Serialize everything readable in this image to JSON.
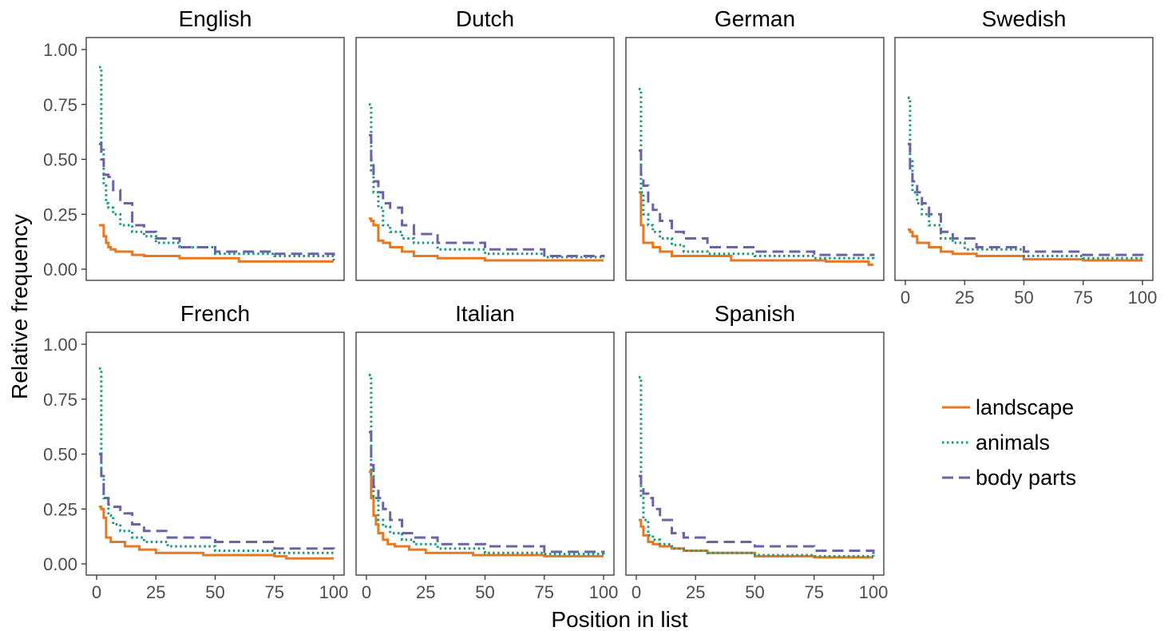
{
  "chart_data": {
    "type": "line",
    "xlabel": "Position in list",
    "ylabel": "Relative frequency",
    "xlim": [
      0,
      100
    ],
    "ylim": [
      0,
      1
    ],
    "x_ticks": [
      0,
      25,
      50,
      75,
      100
    ],
    "y_ticks": [
      0.0,
      0.25,
      0.5,
      0.75,
      1.0
    ],
    "x_tick_labels": [
      "0",
      "25",
      "50",
      "75",
      "100"
    ],
    "y_tick_labels": [
      "0.00",
      "0.25",
      "0.50",
      "0.75",
      "1.00"
    ],
    "grid": false,
    "legend_position": "right",
    "series_styles": [
      {
        "name": "landscape",
        "color": "#e87722",
        "dash": "solid"
      },
      {
        "name": "animals",
        "color": "#1a9a7a",
        "dash": "dotted"
      },
      {
        "name": "body parts",
        "color": "#6a63a8",
        "dash": "dashed"
      }
    ],
    "panels": [
      {
        "title": "English",
        "series": [
          {
            "name": "landscape",
            "x": [
              1,
              2,
              3,
              4,
              5,
              6,
              8,
              10,
              15,
              20,
              30,
              35,
              45,
              60,
              80,
              100
            ],
            "y": [
              0.2,
              0.2,
              0.15,
              0.12,
              0.1,
              0.09,
              0.08,
              0.08,
              0.065,
              0.06,
              0.06,
              0.05,
              0.05,
              0.035,
              0.035,
              0.035
            ]
          },
          {
            "name": "animals",
            "x": [
              1,
              2,
              3,
              4,
              5,
              7,
              10,
              15,
              20,
              25,
              35,
              50,
              75,
              100
            ],
            "y": [
              0.92,
              0.55,
              0.38,
              0.3,
              0.28,
              0.25,
              0.2,
              0.17,
              0.15,
              0.12,
              0.1,
              0.07,
              0.06,
              0.04
            ]
          },
          {
            "name": "body parts",
            "x": [
              1,
              2,
              3,
              5,
              7,
              10,
              15,
              20,
              25,
              35,
              50,
              75,
              100
            ],
            "y": [
              0.57,
              0.5,
              0.43,
              0.42,
              0.36,
              0.3,
              0.2,
              0.17,
              0.14,
              0.1,
              0.08,
              0.07,
              0.05
            ]
          }
        ]
      },
      {
        "title": "Dutch",
        "series": [
          {
            "name": "landscape",
            "x": [
              1,
              2,
              3,
              5,
              7,
              10,
              15,
              20,
              30,
              50,
              75,
              100
            ],
            "y": [
              0.23,
              0.22,
              0.2,
              0.13,
              0.12,
              0.1,
              0.08,
              0.06,
              0.05,
              0.04,
              0.04,
              0.04
            ]
          },
          {
            "name": "animals",
            "x": [
              1,
              2,
              3,
              5,
              7,
              10,
              15,
              20,
              30,
              50,
              75,
              100
            ],
            "y": [
              0.75,
              0.45,
              0.35,
              0.28,
              0.2,
              0.17,
              0.14,
              0.12,
              0.09,
              0.07,
              0.055,
              0.05
            ]
          },
          {
            "name": "body parts",
            "x": [
              1,
              2,
              3,
              5,
              7,
              10,
              15,
              20,
              30,
              50,
              75,
              100
            ],
            "y": [
              0.61,
              0.5,
              0.4,
              0.35,
              0.3,
              0.28,
              0.2,
              0.16,
              0.12,
              0.09,
              0.06,
              0.055
            ]
          }
        ]
      },
      {
        "title": "German",
        "series": [
          {
            "name": "landscape",
            "x": [
              1,
              2,
              3,
              5,
              7,
              10,
              15,
              20,
              40,
              60,
              80,
              98,
              100
            ],
            "y": [
              0.35,
              0.2,
              0.12,
              0.12,
              0.1,
              0.08,
              0.06,
              0.06,
              0.04,
              0.04,
              0.035,
              0.02,
              0.02
            ]
          },
          {
            "name": "animals",
            "x": [
              1,
              2,
              3,
              5,
              7,
              10,
              15,
              20,
              30,
              50,
              75,
              100
            ],
            "y": [
              0.82,
              0.35,
              0.25,
              0.2,
              0.17,
              0.14,
              0.11,
              0.08,
              0.07,
              0.06,
              0.05,
              0.04
            ]
          },
          {
            "name": "body parts",
            "x": [
              1,
              2,
              3,
              5,
              7,
              10,
              15,
              20,
              30,
              50,
              75,
              100
            ],
            "y": [
              0.54,
              0.43,
              0.38,
              0.3,
              0.27,
              0.22,
              0.17,
              0.14,
              0.1,
              0.08,
              0.065,
              0.06
            ]
          }
        ]
      },
      {
        "title": "Swedish",
        "series": [
          {
            "name": "landscape",
            "x": [
              1,
              2,
              3,
              5,
              7,
              10,
              15,
              20,
              30,
              50,
              75,
              100
            ],
            "y": [
              0.18,
              0.17,
              0.15,
              0.12,
              0.12,
              0.1,
              0.08,
              0.07,
              0.06,
              0.045,
              0.04,
              0.04
            ]
          },
          {
            "name": "animals",
            "x": [
              1,
              2,
              3,
              5,
              7,
              10,
              15,
              20,
              25,
              50,
              75,
              100
            ],
            "y": [
              0.78,
              0.5,
              0.35,
              0.3,
              0.25,
              0.2,
              0.14,
              0.12,
              0.09,
              0.06,
              0.05,
              0.04
            ]
          },
          {
            "name": "body parts",
            "x": [
              1,
              2,
              3,
              5,
              7,
              10,
              15,
              20,
              30,
              50,
              75,
              100
            ],
            "y": [
              0.57,
              0.45,
              0.4,
              0.35,
              0.3,
              0.25,
              0.17,
              0.14,
              0.1,
              0.08,
              0.065,
              0.06
            ]
          }
        ]
      },
      {
        "title": "French",
        "series": [
          {
            "name": "landscape",
            "x": [
              1,
              2,
              3,
              4,
              6,
              8,
              12,
              18,
              25,
              45,
              75,
              80,
              100
            ],
            "y": [
              0.26,
              0.25,
              0.21,
              0.12,
              0.1,
              0.1,
              0.08,
              0.065,
              0.05,
              0.04,
              0.035,
              0.025,
              0.025
            ]
          },
          {
            "name": "animals",
            "x": [
              1,
              2,
              3,
              5,
              7,
              10,
              15,
              20,
              30,
              50,
              75,
              100
            ],
            "y": [
              0.89,
              0.4,
              0.3,
              0.22,
              0.18,
              0.15,
              0.12,
              0.1,
              0.08,
              0.06,
              0.05,
              0.04
            ]
          },
          {
            "name": "body parts",
            "x": [
              1,
              2,
              3,
              5,
              7,
              10,
              15,
              20,
              30,
              50,
              75,
              100
            ],
            "y": [
              0.5,
              0.4,
              0.3,
              0.27,
              0.26,
              0.23,
              0.18,
              0.15,
              0.12,
              0.1,
              0.07,
              0.06
            ]
          }
        ]
      },
      {
        "title": "Italian",
        "series": [
          {
            "name": "landscape",
            "x": [
              1,
              2,
              3,
              4,
              5,
              7,
              9,
              12,
              18,
              25,
              45,
              75,
              100
            ],
            "y": [
              0.42,
              0.3,
              0.22,
              0.18,
              0.14,
              0.11,
              0.09,
              0.08,
              0.065,
              0.05,
              0.04,
              0.035,
              0.035
            ]
          },
          {
            "name": "animals",
            "x": [
              1,
              2,
              3,
              5,
              7,
              10,
              15,
              20,
              30,
              50,
              75,
              100
            ],
            "y": [
              0.86,
              0.4,
              0.3,
              0.2,
              0.17,
              0.14,
              0.11,
              0.09,
              0.07,
              0.05,
              0.045,
              0.04
            ]
          },
          {
            "name": "body parts",
            "x": [
              1,
              2,
              3,
              5,
              7,
              10,
              15,
              20,
              30,
              50,
              75,
              100
            ],
            "y": [
              0.6,
              0.45,
              0.35,
              0.3,
              0.25,
              0.2,
              0.14,
              0.12,
              0.09,
              0.08,
              0.055,
              0.05
            ]
          }
        ]
      },
      {
        "title": "Spanish",
        "series": [
          {
            "name": "landscape",
            "x": [
              1,
              2,
              3,
              5,
              7,
              10,
              15,
              20,
              30,
              50,
              75,
              100
            ],
            "y": [
              0.2,
              0.17,
              0.13,
              0.1,
              0.09,
              0.08,
              0.07,
              0.06,
              0.05,
              0.035,
              0.03,
              0.03
            ]
          },
          {
            "name": "animals",
            "x": [
              1,
              2,
              3,
              5,
              7,
              10,
              15,
              20,
              30,
              50,
              75,
              100
            ],
            "y": [
              0.85,
              0.3,
              0.2,
              0.13,
              0.11,
              0.09,
              0.07,
              0.06,
              0.05,
              0.04,
              0.035,
              0.03
            ]
          },
          {
            "name": "body parts",
            "x": [
              1,
              2,
              3,
              5,
              7,
              10,
              15,
              20,
              30,
              50,
              75,
              100
            ],
            "y": [
              0.4,
              0.35,
              0.32,
              0.3,
              0.25,
              0.2,
              0.14,
              0.12,
              0.1,
              0.08,
              0.06,
              0.045
            ]
          }
        ]
      }
    ]
  }
}
